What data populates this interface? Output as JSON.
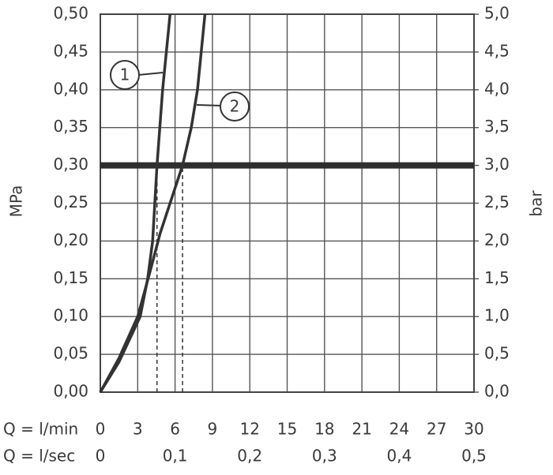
{
  "chart_data": {
    "type": "line",
    "y_label": "MPa",
    "y2_label": "bar",
    "x_label": "Q = l/min",
    "x2_label": "Q = l/sec",
    "xlim": [
      0,
      30
    ],
    "xticks": [
      0,
      3,
      6,
      9,
      12,
      15,
      18,
      21,
      24,
      27,
      30
    ],
    "x2lim": [
      0,
      0.5
    ],
    "x2ticks": [
      0,
      {
        "value": 0.1,
        "label": "0,1"
      },
      {
        "value": 0.2,
        "label": "0,2"
      },
      {
        "value": 0.3,
        "label": "0,3"
      },
      {
        "value": 0.4,
        "label": "0,4"
      },
      {
        "value": 0.5,
        "label": "0,5"
      }
    ],
    "ylim": [
      0,
      0.5
    ],
    "yticks": [
      {
        "value": 0,
        "label": "0,00"
      },
      {
        "value": 0.05,
        "label": "0,05"
      },
      {
        "value": 0.1,
        "label": "0,10"
      },
      {
        "value": 0.15,
        "label": "0,15"
      },
      {
        "value": 0.2,
        "label": "0,20"
      },
      {
        "value": 0.25,
        "label": "0,25"
      },
      {
        "value": 0.3,
        "label": "0,30"
      },
      {
        "value": 0.35,
        "label": "0,35"
      },
      {
        "value": 0.4,
        "label": "0,40"
      },
      {
        "value": 0.45,
        "label": "0,45"
      },
      {
        "value": 0.5,
        "label": "0,50"
      }
    ],
    "y2lim": [
      0,
      5
    ],
    "y2ticks": [
      {
        "value": 0,
        "label": "0,0"
      },
      {
        "value": 0.5,
        "label": "0,5"
      },
      {
        "value": 1,
        "label": "1,0"
      },
      {
        "value": 1.5,
        "label": "1,5"
      },
      {
        "value": 2,
        "label": "2,0"
      },
      {
        "value": 2.5,
        "label": "2,5"
      },
      {
        "value": 3,
        "label": "3,0"
      },
      {
        "value": 3.5,
        "label": "3,5"
      },
      {
        "value": 4,
        "label": "4,0"
      },
      {
        "value": 4.5,
        "label": "4,5"
      },
      {
        "value": 5,
        "label": "5,0"
      }
    ],
    "grid": true,
    "threshold": 0.3,
    "reference_x": [
      4.55,
      6.6
    ],
    "series": [
      {
        "name": "1",
        "color": "#333333",
        "x": [
          0,
          1.5,
          3.2,
          3.8,
          4.2,
          4.55,
          5.0,
          5.6
        ],
        "values": [
          0,
          0.04,
          0.1,
          0.15,
          0.2,
          0.3,
          0.4,
          0.5
        ]
      },
      {
        "name": "2",
        "color": "#333333",
        "x": [
          0,
          1.5,
          3.0,
          4.0,
          4.8,
          5.8,
          6.6,
          7.3,
          7.8,
          8.4
        ],
        "values": [
          0,
          0.045,
          0.1,
          0.16,
          0.21,
          0.26,
          0.3,
          0.35,
          0.4,
          0.5
        ]
      }
    ]
  }
}
